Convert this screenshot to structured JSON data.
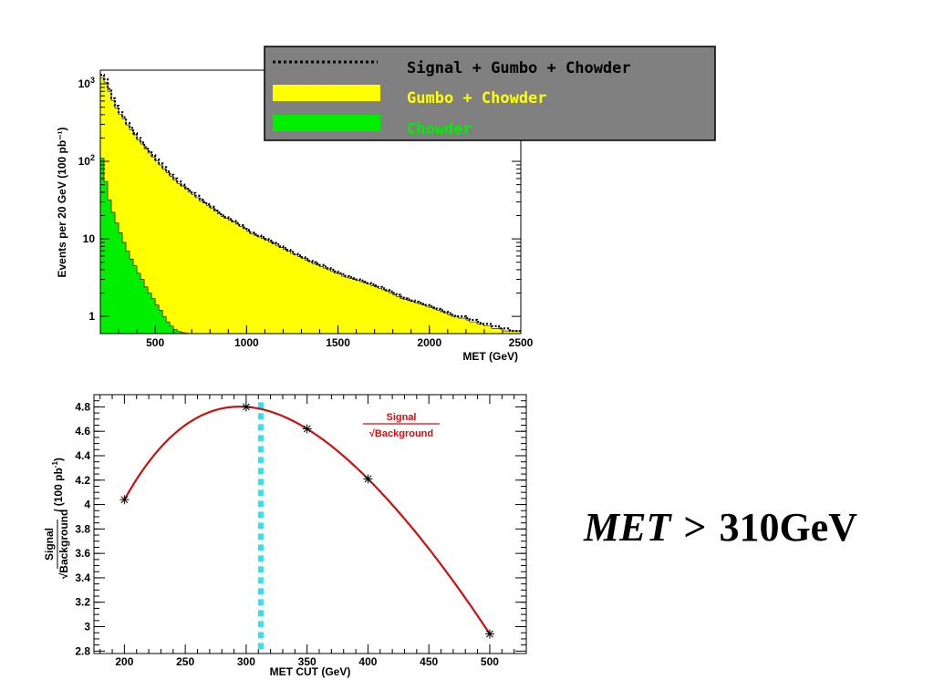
{
  "condition": {
    "lhs": "MET",
    "op": ">",
    "rhs": "310GeV"
  },
  "chart_data": [
    {
      "type": "area",
      "xlabel": "MET (GeV)",
      "ylabel": "Events per 20 GeV (100 pb⁻¹)",
      "xlim": [
        200,
        2500
      ],
      "ylim": [
        0.6,
        1500
      ],
      "yscale": "log",
      "x_ticks": [
        "500",
        "1000",
        "1500",
        "2000",
        "2500"
      ],
      "y_ticks": [
        "1",
        "10",
        "10²",
        "10³"
      ],
      "bin_width": 20,
      "legend": {
        "placement": "top-right",
        "entries": [
          {
            "label": "Signal + Gumbo + Chowder",
            "style": "dotted-line",
            "color": "#000000"
          },
          {
            "label": "Gumbo + Chowder",
            "style": "fill",
            "color": "#ffff00"
          },
          {
            "label": "Chowder",
            "style": "fill",
            "color": "#00ee00"
          }
        ],
        "background": "#808080"
      },
      "series": [
        {
          "name": "Signal + Gumbo + Chowder",
          "color": "#000000",
          "values": [
            1300,
            1150,
            860,
            650,
            520,
            430,
            370,
            310,
            270,
            230,
            200,
            175,
            152,
            135,
            120,
            106,
            94,
            84,
            74,
            67,
            60,
            55,
            50,
            46,
            42,
            39,
            36,
            33,
            30,
            28,
            26,
            24,
            22,
            20,
            19,
            18,
            17,
            16,
            15,
            14,
            13,
            12,
            11.5,
            11,
            10.5,
            10,
            9.5,
            9,
            8.5,
            8,
            7.6,
            7.2,
            6.8,
            6.4,
            6.1,
            5.8,
            5.5,
            5.2,
            5,
            4.8,
            4.6,
            4.4,
            4.2,
            4,
            3.8,
            3.6,
            3.5,
            3.3,
            3.2,
            3.1,
            3,
            2.9,
            2.8,
            2.7,
            2.6,
            2.5,
            2.4,
            2.3,
            2.2,
            2.1,
            2,
            1.9,
            1.8,
            1.7,
            1.65,
            1.6,
            1.55,
            1.5,
            1.45,
            1.4,
            1.35,
            1.3,
            1.25,
            1.2,
            1.15,
            1.1,
            1.05,
            1,
            1,
            1,
            0.95,
            0.9,
            0.9,
            0.85,
            0.8,
            0.8,
            0.8,
            0.75,
            0.75,
            0.7,
            0.7,
            0.7,
            0.65,
            0.65,
            0.65
          ]
        },
        {
          "name": "Gumbo + Chowder",
          "color": "#ffff00",
          "values": [
            1200,
            1050,
            800,
            610,
            490,
            405,
            350,
            295,
            255,
            220,
            190,
            167,
            145,
            128,
            114,
            101,
            90,
            80,
            71,
            64,
            57,
            52,
            48,
            44,
            40,
            37,
            34,
            31,
            29,
            27,
            25,
            23,
            21,
            19.5,
            18.5,
            17.5,
            16.5,
            15.5,
            14.5,
            13.5,
            12.5,
            11.7,
            11.1,
            10.6,
            10.1,
            9.6,
            9.1,
            8.6,
            8.1,
            7.7,
            7.3,
            6.9,
            6.5,
            6.2,
            5.9,
            5.6,
            5.3,
            5.1,
            4.8,
            4.6,
            4.4,
            4.2,
            4,
            3.8,
            3.6,
            3.5,
            3.3,
            3.2,
            3.1,
            3,
            2.9,
            2.8,
            2.7,
            2.6,
            2.5,
            2.4,
            2.3,
            2.2,
            2.1,
            2,
            1.9,
            1.8,
            1.7,
            1.65,
            1.6,
            1.55,
            1.5,
            1.45,
            1.4,
            1.35,
            1.3,
            1.25,
            1.2,
            1.15,
            1.1,
            1.05,
            1,
            1,
            0.95,
            0.95,
            0.9,
            0.85,
            0.85,
            0.8,
            0.8,
            0.75,
            0.75,
            0.7,
            0.7,
            0.7,
            0.65,
            0.65,
            0.65,
            0.65,
            0.65
          ]
        },
        {
          "name": "Chowder",
          "color": "#00ee00",
          "values": [
            110,
            55,
            32,
            22,
            16,
            12,
            9,
            7,
            5.5,
            4.5,
            3.6,
            3,
            2.4,
            2,
            1.7,
            1.4,
            1.2,
            1,
            0.85,
            0.75,
            0.68,
            0.64,
            0.62,
            0.61
          ]
        }
      ]
    },
    {
      "type": "line",
      "xlabel": "MET CUT (GeV)",
      "ylabel": "Signal / √Background / (100 pb⁻¹)",
      "xlim": [
        175,
        530
      ],
      "ylim": [
        2.78,
        4.9
      ],
      "x_ticks": [
        200,
        250,
        300,
        350,
        400,
        450,
        500
      ],
      "y_ticks": [
        2.8,
        3,
        3.2,
        3.4,
        3.6,
        3.8,
        4,
        4.2,
        4.4,
        4.6,
        4.8
      ],
      "annotation": {
        "numerator": "Signal",
        "denominator": "Background",
        "color": "#d01010"
      },
      "points": [
        {
          "x": 200,
          "y": 4.04
        },
        {
          "x": 300,
          "y": 4.8
        },
        {
          "x": 350,
          "y": 4.62
        },
        {
          "x": 400,
          "y": 4.21
        },
        {
          "x": 500,
          "y": 2.94
        }
      ],
      "fit_curve_color": "#cc1010",
      "cut_line": {
        "x": 312,
        "color": "#33e0f0"
      }
    }
  ]
}
